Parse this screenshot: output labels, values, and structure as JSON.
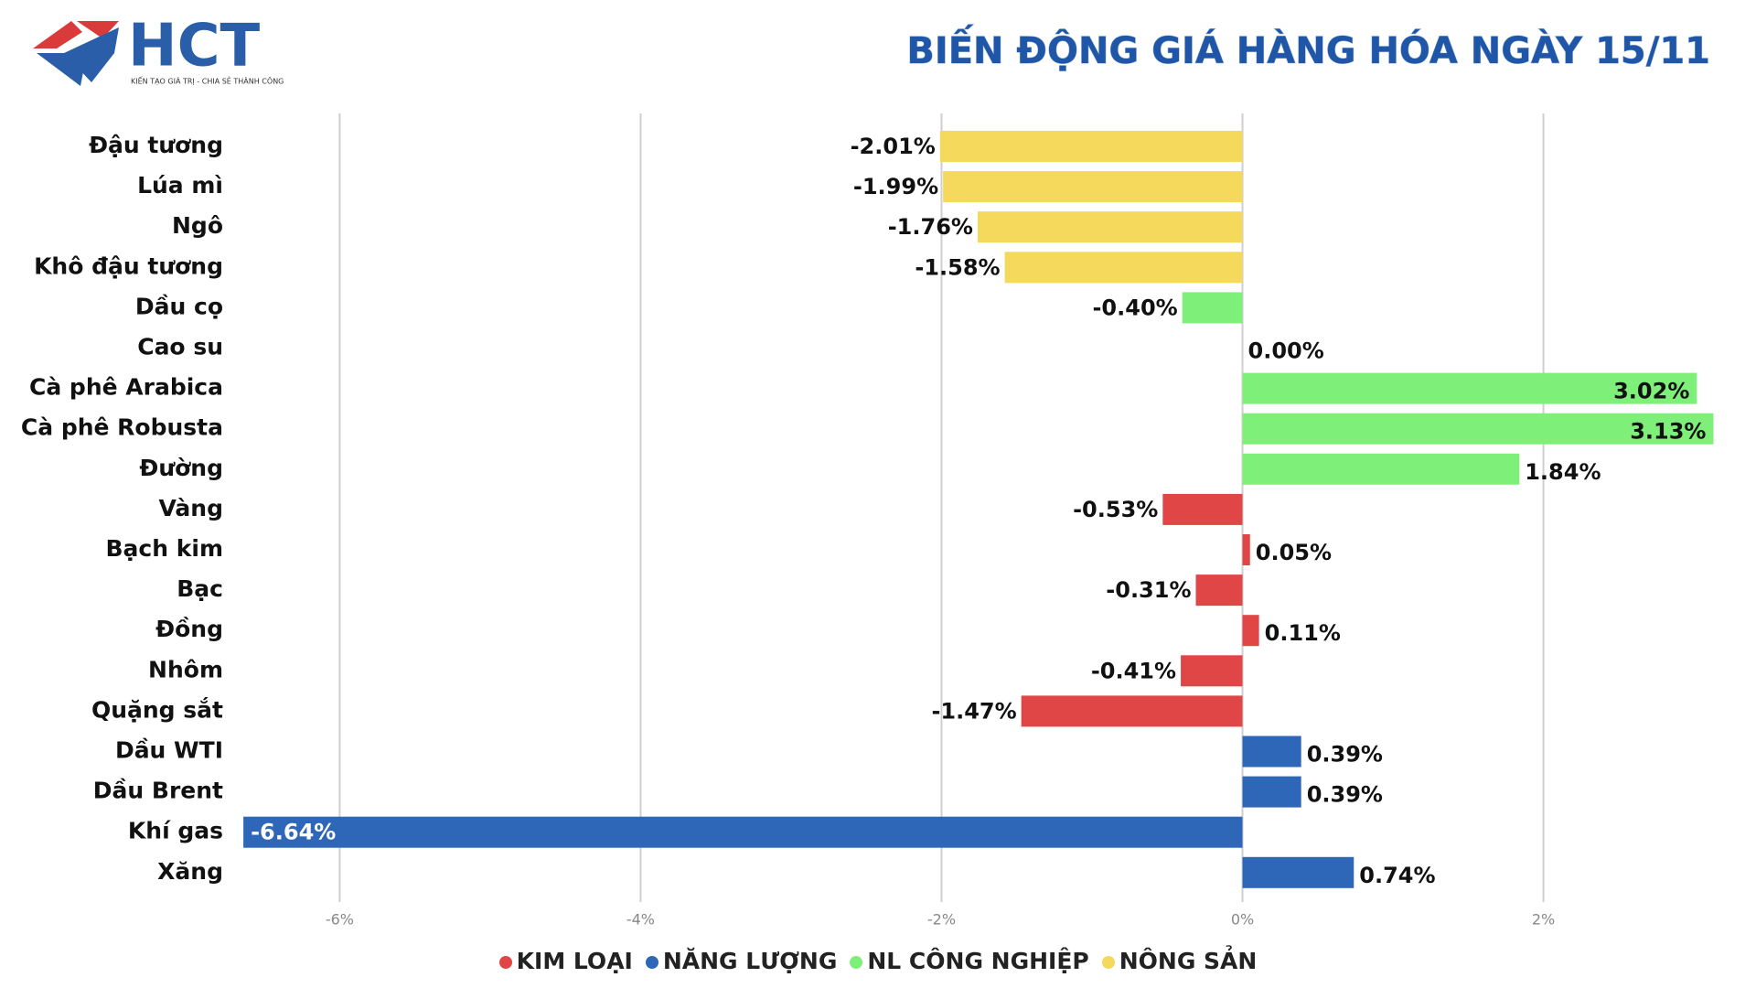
{
  "logo": {
    "name": "HCT",
    "tagline": "KIẾN TẠO GIÁ TRỊ - CHIA SẺ THÀNH CÔNG"
  },
  "chart_data": {
    "type": "barh",
    "title": "BIẾN ĐỘNG GIÁ HÀNG HÓA NGÀY 15/11",
    "categories": [
      "Đậu tương",
      "Lúa mì",
      "Ngô",
      "Khô đậu tương",
      "Dầu cọ",
      "Cao su",
      "Cà phê Arabica",
      "Cà phê Robusta",
      "Đường",
      "Vàng",
      "Bạch kim",
      "Bạc",
      "Đồng",
      "Nhôm",
      "Quặng sắt",
      "Dầu WTI",
      "Dầu Brent",
      "Khí gas",
      "Xăng"
    ],
    "series": [
      {
        "name": "KIM LOẠI",
        "color": "#e04646",
        "values": [
          null,
          null,
          null,
          null,
          null,
          null,
          null,
          null,
          null,
          -0.53,
          0.05,
          -0.31,
          0.11,
          -0.41,
          -1.47,
          null,
          null,
          null,
          null
        ],
        "value_labels": [
          null,
          null,
          null,
          null,
          null,
          null,
          null,
          null,
          null,
          "-0.53%",
          "0.05%",
          "-0.31%",
          "0.11%",
          "-0.41%",
          "-1.47%",
          null,
          null,
          null,
          null
        ]
      },
      {
        "name": "NĂNG LƯỢNG",
        "color": "#2f67b8",
        "values": [
          null,
          null,
          null,
          null,
          null,
          null,
          null,
          null,
          null,
          null,
          null,
          null,
          null,
          null,
          null,
          0.39,
          0.39,
          -6.64,
          0.74
        ],
        "value_labels": [
          null,
          null,
          null,
          null,
          null,
          null,
          null,
          null,
          null,
          null,
          null,
          null,
          null,
          null,
          null,
          "0.39%",
          "0.39%",
          "-6.64%",
          "0.74%"
        ]
      },
      {
        "name": "NL CÔNG NGHIỆP",
        "color": "#7ef07a",
        "values": [
          null,
          null,
          null,
          null,
          -0.4,
          0.0,
          3.02,
          3.13,
          1.84,
          null,
          null,
          null,
          null,
          null,
          null,
          null,
          null,
          null,
          null
        ],
        "value_labels": [
          null,
          null,
          null,
          null,
          "-0.40%",
          "0.00%",
          "3.02%",
          "3.13%",
          "1.84%",
          null,
          null,
          null,
          null,
          null,
          null,
          null,
          null,
          null,
          null
        ]
      },
      {
        "name": "NÔNG SẢN",
        "color": "#f5d95c",
        "values": [
          -2.01,
          -1.99,
          -1.76,
          -1.58,
          null,
          null,
          null,
          null,
          null,
          null,
          null,
          null,
          null,
          null,
          null,
          null,
          null,
          null,
          null
        ],
        "value_labels": [
          "-2.01%",
          "-1.99%",
          "-1.76%",
          "-1.58%",
          null,
          null,
          null,
          null,
          null,
          null,
          null,
          null,
          null,
          null,
          null,
          null,
          null,
          null,
          null
        ]
      }
    ],
    "xlim": [
      -6.75,
      3.2
    ],
    "xticks": [
      {
        "value": -6,
        "label": "-6%"
      },
      {
        "value": -4,
        "label": "-4%"
      },
      {
        "value": -2,
        "label": "-2%"
      },
      {
        "value": 0,
        "label": "0%"
      },
      {
        "value": 2,
        "label": "2%"
      }
    ],
    "grid": true
  }
}
